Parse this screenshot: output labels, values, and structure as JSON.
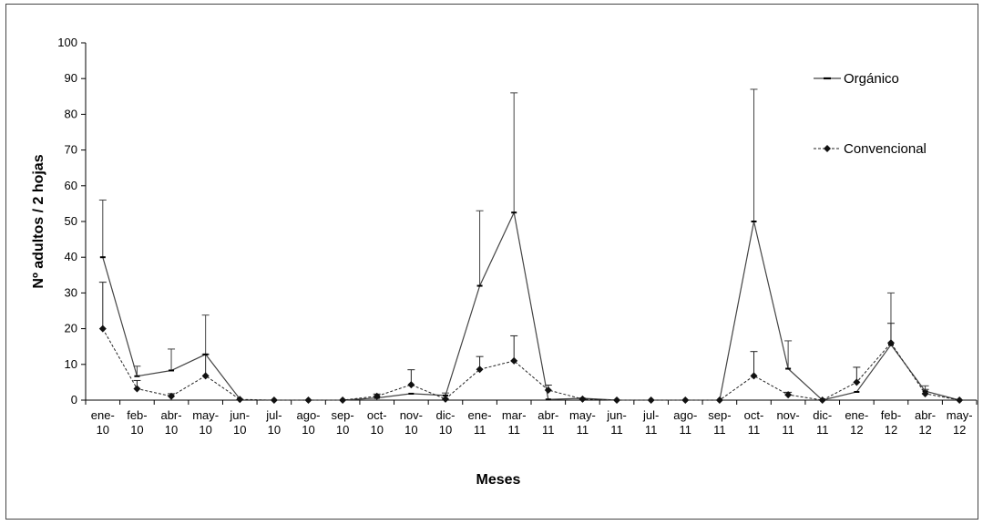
{
  "chart_data": {
    "type": "line",
    "xlabel": "Meses",
    "ylabel": "Nº adultos / 2 hojas",
    "ylim": [
      0,
      100
    ],
    "yticks": [
      0,
      10,
      20,
      30,
      40,
      50,
      60,
      70,
      80,
      90,
      100
    ],
    "categories": [
      [
        "ene-",
        "10"
      ],
      [
        "feb-",
        "10"
      ],
      [
        "abr-",
        "10"
      ],
      [
        "may-",
        "10"
      ],
      [
        "jun-",
        "10"
      ],
      [
        "jul-",
        "10"
      ],
      [
        "ago-",
        "10"
      ],
      [
        "sep-",
        "10"
      ],
      [
        "oct-",
        "10"
      ],
      [
        "nov-",
        "10"
      ],
      [
        "dic-",
        "10"
      ],
      [
        "ene-",
        "11"
      ],
      [
        "mar-",
        "11"
      ],
      [
        "abr-",
        "11"
      ],
      [
        "may-",
        "11"
      ],
      [
        "jun-",
        "11"
      ],
      [
        "jul-",
        "11"
      ],
      [
        "ago-",
        "11"
      ],
      [
        "sep-",
        "11"
      ],
      [
        "oct-",
        "11"
      ],
      [
        "nov-",
        "11"
      ],
      [
        "dic-",
        "11"
      ],
      [
        "ene-",
        "12"
      ],
      [
        "feb-",
        "12"
      ],
      [
        "abr-",
        "12"
      ],
      [
        "may-",
        "12"
      ]
    ],
    "grid": false,
    "legend_position": "top-right",
    "series": [
      {
        "name": "Orgánico",
        "style": "solid",
        "marker": "dash",
        "color": "#444444",
        "values": [
          40,
          6.7,
          8.3,
          12.8,
          0.3,
          null,
          null,
          0,
          0.6,
          1.8,
          1.3,
          32,
          52.5,
          0.2,
          0.5,
          0,
          null,
          null,
          0,
          50,
          8.8,
          0,
          2.3,
          15.5,
          2.5,
          0
        ],
        "error": [
          16,
          2.8,
          6,
          11,
          0,
          null,
          null,
          0,
          0.3,
          0.3,
          0.7,
          21,
          33.5,
          0,
          0,
          0,
          null,
          null,
          0,
          37,
          7.8,
          0,
          0,
          14.5,
          1.5,
          0
        ]
      },
      {
        "name": "Convencional",
        "style": "dashed",
        "marker": "diamond",
        "color": "#222222",
        "values": [
          20,
          3.2,
          1.1,
          6.8,
          0.2,
          0,
          0,
          0,
          1.1,
          4.3,
          0.3,
          8.6,
          11,
          2.8,
          0.3,
          0,
          0,
          0,
          0,
          6.8,
          1.5,
          0,
          5,
          16,
          1.8,
          0
        ],
        "error": [
          13,
          2.3,
          0.7,
          6,
          0,
          0,
          0,
          0,
          0.6,
          4.2,
          0,
          3.6,
          7,
          1.4,
          0,
          0,
          0,
          0,
          0,
          6.8,
          0.7,
          0,
          4.2,
          5.5,
          1.2,
          0
        ]
      }
    ]
  }
}
